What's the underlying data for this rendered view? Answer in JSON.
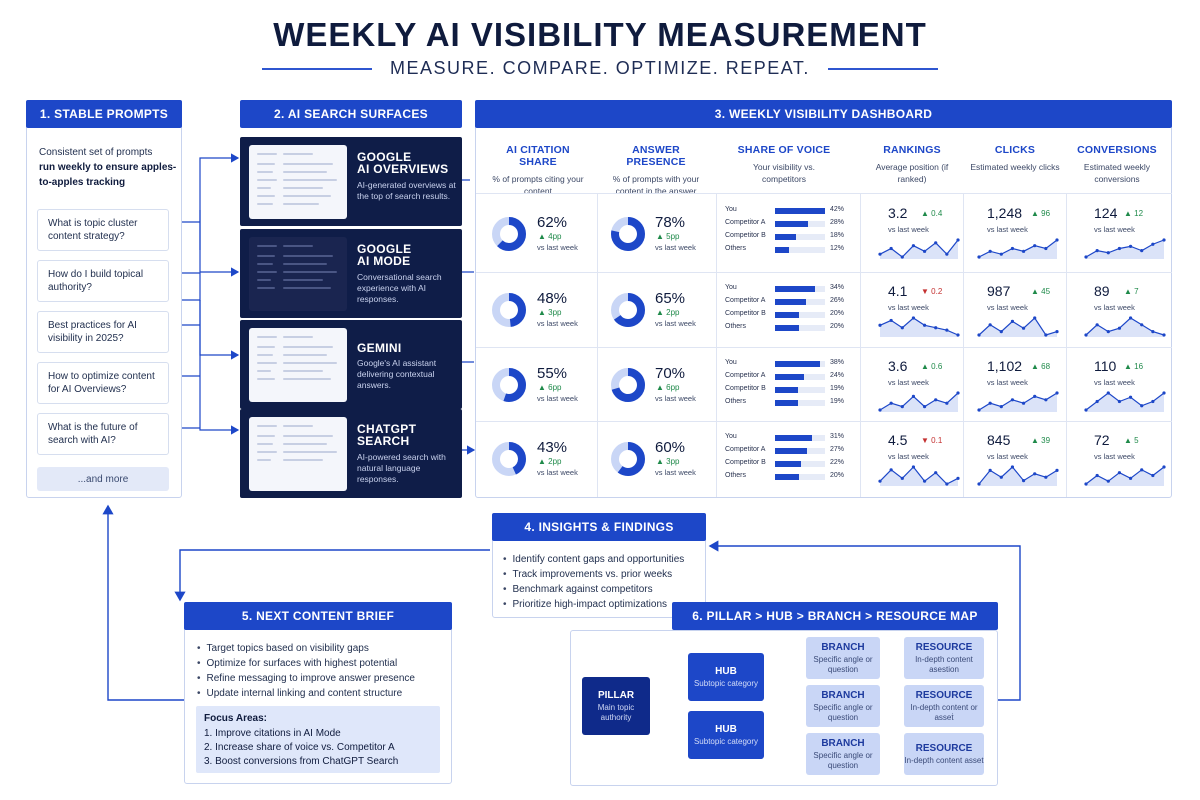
{
  "header": {
    "title": "WEEKLY AI VISIBILITY MEASUREMENT",
    "subtitle": "MEASURE. COMPARE. OPTIMIZE. REPEAT."
  },
  "prompts": {
    "header": "1. STABLE PROMPTS",
    "intro_plain": "Consistent set of prompts",
    "intro_bold": "run weekly to ensure apples-to-apples tracking",
    "items": [
      "What is topic cluster content strategy?",
      "How do I build topical authority?",
      "Best practices for AI visibility in 2025?",
      "How to optimize content for AI Overviews?",
      "What is the future of search with AI?"
    ],
    "more": "...and more"
  },
  "surfaces": {
    "header": "2. AI SEARCH SURFACES",
    "items": [
      {
        "title_1": "GOOGLE",
        "title_2": "AI OVERVIEWS",
        "desc": "AI-generated overviews at the top of search results."
      },
      {
        "title_1": "GOOGLE",
        "title_2": "AI MODE",
        "desc": "Conversational search experience with AI responses."
      },
      {
        "title_1": "GEMINI",
        "title_2": "",
        "desc": "Google's AI assistant delivering contextual answers."
      },
      {
        "title_1": "CHATGPT",
        "title_2": "SEARCH",
        "desc": "AI-powered search with natural language responses."
      }
    ]
  },
  "dashboard": {
    "header": "3. WEEKLY VISIBILITY DASHBOARD",
    "columns": [
      {
        "title": "AI CITATION SHARE",
        "desc": "% of prompts citing your content"
      },
      {
        "title": "ANSWER PRESENCE",
        "desc": "% of prompts with your content in the answer"
      },
      {
        "title": "SHARE OF VOICE",
        "desc": "Your visibility vs. competitors"
      },
      {
        "title": "RANKINGS",
        "desc": "Average position (if ranked)"
      },
      {
        "title": "CLICKS",
        "desc": "Estimated weekly clicks"
      },
      {
        "title": "CONVERSIONS",
        "desc": "Estimated weekly conversions"
      }
    ],
    "vs_label": "vs last week",
    "sov_labels": [
      "You",
      "Competitor A",
      "Competitor B",
      "Others"
    ],
    "rows": [
      {
        "citation": {
          "value": "62%",
          "delta": "▲ 4pp",
          "fraction": 0.62
        },
        "presence": {
          "value": "78%",
          "delta": "▲ 5pp",
          "fraction": 0.78
        },
        "sov": [
          {
            "pct": "42%",
            "fraction": 0.42
          },
          {
            "pct": "28%",
            "fraction": 0.28
          },
          {
            "pct": "18%",
            "fraction": 0.18
          },
          {
            "pct": "12%",
            "fraction": 0.12
          }
        ],
        "rank": {
          "value": "3.2",
          "delta": "▲ 0.4",
          "dir": "up",
          "spark": [
            4,
            6,
            3,
            7,
            5,
            8,
            4,
            9
          ]
        },
        "clicks": {
          "value": "1,248",
          "delta": "▲ 96",
          "dir": "up",
          "spark": [
            3,
            5,
            4,
            6,
            5,
            7,
            6,
            9
          ]
        },
        "conversions": {
          "value": "124",
          "delta": "▲ 12",
          "dir": "up",
          "spark": [
            2,
            5,
            4,
            6,
            7,
            5,
            8,
            10
          ]
        }
      },
      {
        "citation": {
          "value": "48%",
          "delta": "▲ 3pp",
          "fraction": 0.48
        },
        "presence": {
          "value": "65%",
          "delta": "▲ 2pp",
          "fraction": 0.65
        },
        "sov": [
          {
            "pct": "34%",
            "fraction": 0.34
          },
          {
            "pct": "26%",
            "fraction": 0.26
          },
          {
            "pct": "20%",
            "fraction": 0.2
          },
          {
            "pct": "20%",
            "fraction": 0.2
          }
        ],
        "rank": {
          "value": "4.1",
          "delta": "▼ 0.2",
          "dir": "down",
          "spark": [
            6,
            8,
            5,
            9,
            6,
            5,
            4,
            2
          ]
        },
        "clicks": {
          "value": "987",
          "delta": "▲ 45",
          "dir": "up",
          "spark": [
            3,
            6,
            4,
            7,
            5,
            8,
            3,
            4
          ]
        },
        "conversions": {
          "value": "89",
          "delta": "▲ 7",
          "dir": "up",
          "spark": [
            3,
            6,
            4,
            5,
            8,
            6,
            4,
            3
          ]
        }
      },
      {
        "citation": {
          "value": "55%",
          "delta": "▲ 6pp",
          "fraction": 0.55
        },
        "presence": {
          "value": "70%",
          "delta": "▲ 6pp",
          "fraction": 0.7
        },
        "sov": [
          {
            "pct": "38%",
            "fraction": 0.38
          },
          {
            "pct": "24%",
            "fraction": 0.24
          },
          {
            "pct": "19%",
            "fraction": 0.19
          },
          {
            "pct": "19%",
            "fraction": 0.19
          }
        ],
        "rank": {
          "value": "3.6",
          "delta": "▲ 0.6",
          "dir": "up",
          "spark": [
            3,
            5,
            4,
            7,
            4,
            6,
            5,
            8
          ]
        },
        "clicks": {
          "value": "1,102",
          "delta": "▲ 68",
          "dir": "up",
          "spark": [
            4,
            6,
            5,
            7,
            6,
            8,
            7,
            9
          ]
        },
        "conversions": {
          "value": "110",
          "delta": "▲ 16",
          "dir": "up",
          "spark": [
            3,
            5,
            7,
            5,
            6,
            4,
            5,
            7
          ]
        }
      },
      {
        "citation": {
          "value": "43%",
          "delta": "▲ 2pp",
          "fraction": 0.43
        },
        "presence": {
          "value": "60%",
          "delta": "▲ 3pp",
          "fraction": 0.6
        },
        "sov": [
          {
            "pct": "31%",
            "fraction": 0.31
          },
          {
            "pct": "27%",
            "fraction": 0.27
          },
          {
            "pct": "22%",
            "fraction": 0.22
          },
          {
            "pct": "20%",
            "fraction": 0.2
          }
        ],
        "rank": {
          "value": "4.5",
          "delta": "▼ 0.1",
          "dir": "down",
          "spark": [
            4,
            8,
            5,
            9,
            4,
            7,
            3,
            5
          ]
        },
        "clicks": {
          "value": "845",
          "delta": "▲ 39",
          "dir": "up",
          "spark": [
            3,
            7,
            5,
            8,
            4,
            6,
            5,
            7
          ]
        },
        "conversions": {
          "value": "72",
          "delta": "▲ 5",
          "dir": "up",
          "spark": [
            3,
            6,
            4,
            7,
            5,
            8,
            6,
            9
          ]
        }
      }
    ]
  },
  "insights": {
    "header": "4. INSIGHTS & FINDINGS",
    "items": [
      "Identify content gaps and opportunities",
      "Track improvements vs. prior weeks",
      "Benchmark against competitors",
      "Prioritize high-impact optimizations"
    ]
  },
  "brief": {
    "header": "5. NEXT CONTENT BRIEF",
    "items": [
      "Target topics based on visibility gaps",
      "Optimize for surfaces with highest potential",
      "Refine messaging to improve answer presence",
      "Update internal linking and content structure"
    ],
    "focus_title": "Focus Areas:",
    "focus_items": [
      "1. Improve citations in AI Mode",
      "2. Increase share of voice vs. Competitor A",
      "3. Boost conversions from ChatGPT Search"
    ]
  },
  "map": {
    "header": "6. PILLAR > HUB > BRANCH > RESOURCE MAP",
    "pillar": {
      "title": "PILLAR",
      "desc": "Main topic authority"
    },
    "hubs": [
      {
        "title": "HUB",
        "desc": "Subtopic category"
      },
      {
        "title": "HUB",
        "desc": "Subtopic category"
      }
    ],
    "branches": [
      {
        "title": "BRANCH",
        "desc": "Specific angle or question"
      },
      {
        "title": "BRANCH",
        "desc": "Specific angle or question"
      },
      {
        "title": "BRANCH",
        "desc": "Specific angle or question"
      }
    ],
    "resources": [
      {
        "title": "RESOURCE",
        "desc": "In-depth content asestion"
      },
      {
        "title": "RESOURCE",
        "desc": "In-depth content or asseṫ"
      },
      {
        "title": "RESOURCE",
        "desc": "In-depth content asset"
      }
    ]
  },
  "colors": {
    "primary": "#1d47c8",
    "navy": "#0f1d48",
    "donut_track": "#c9d6f6",
    "positive": "#1f8a4a",
    "negative": "#c43030"
  }
}
